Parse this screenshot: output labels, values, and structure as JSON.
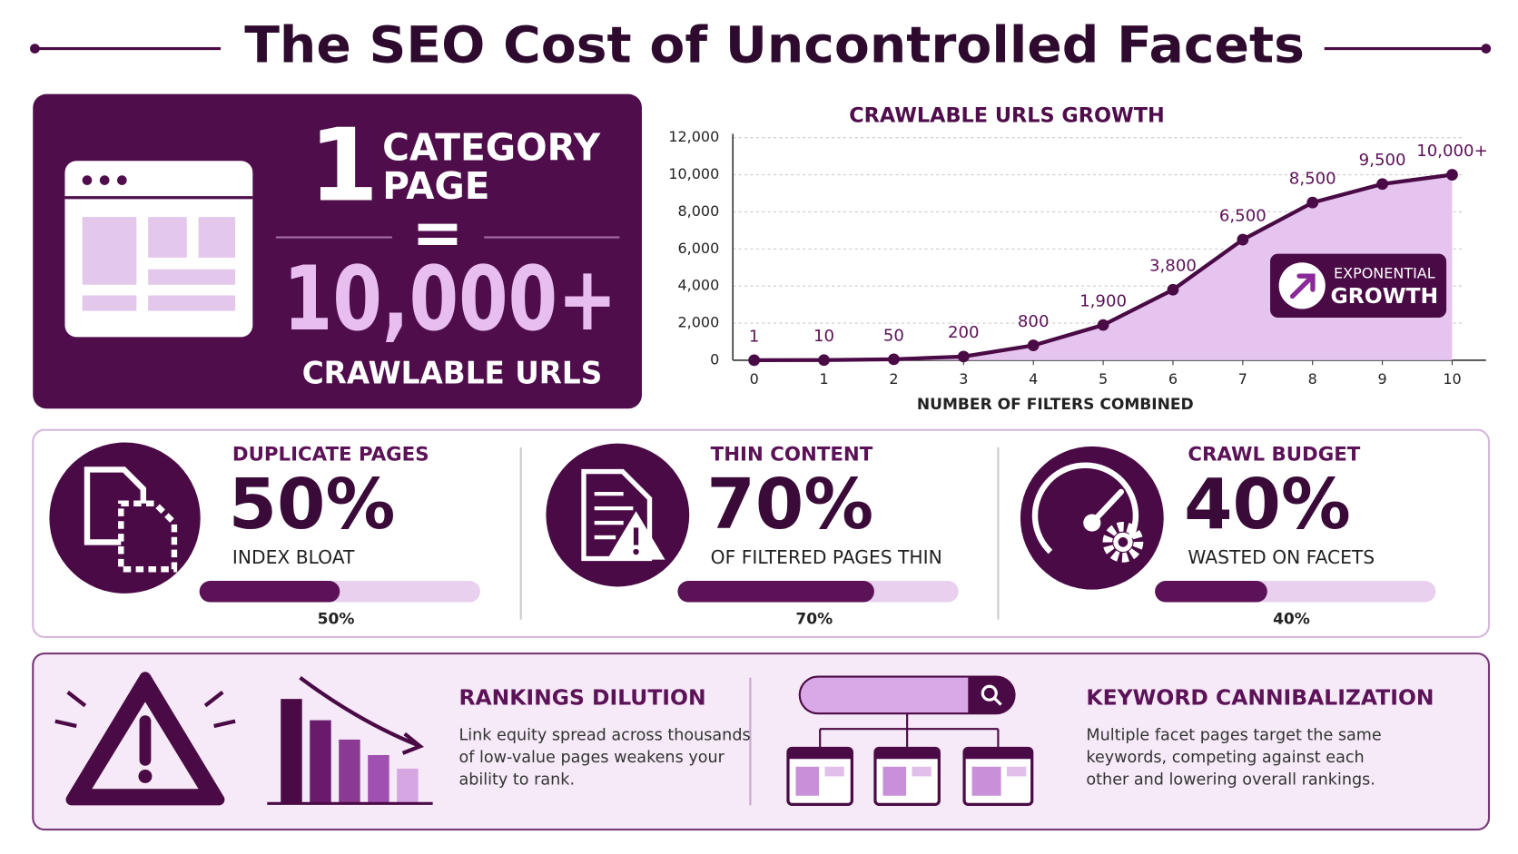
{
  "title": "The SEO Cost of Uncontrolled Facets",
  "hero": {
    "number": "1",
    "label_lines": [
      "CATEGORY",
      "PAGE"
    ],
    "equals": "=",
    "result": "10,000+",
    "result_label": "CRAWLABLE URLS"
  },
  "chart_data": {
    "type": "line",
    "title": "CRAWLABLE URLS GROWTH",
    "x_label": "NUMBER OF FILTERS COMBINED",
    "x": [
      0,
      1,
      2,
      3,
      4,
      5,
      6,
      7,
      8,
      9,
      10
    ],
    "values": [
      1,
      10,
      50,
      200,
      800,
      1900,
      3800,
      6500,
      8500,
      9500,
      10000
    ],
    "value_labels": [
      "1",
      "10",
      "50",
      "200",
      "800",
      "1,900",
      "3,800",
      "6,500",
      "8,500",
      "9,500",
      "10,000+"
    ],
    "color": "#4a0a45",
    "area_color": "#e6c4f0",
    "xlim": [
      0,
      10
    ],
    "xticks": [
      0,
      1,
      2,
      3,
      4,
      5,
      6,
      7,
      8,
      9,
      10
    ],
    "ylim": [
      0,
      12000
    ],
    "yticks": [
      0,
      {
        "value": 2000,
        "label": "2,000"
      },
      {
        "value": 4000,
        "label": "4,000"
      },
      {
        "value": 6000,
        "label": "6,000"
      },
      {
        "value": 8000,
        "label": "8,000"
      },
      {
        "value": 10000,
        "label": "10,000"
      },
      {
        "value": 12000,
        "label": "12,000"
      }
    ],
    "grid": true,
    "annotation": [
      "EXPONENTIAL",
      "GROWTH"
    ]
  },
  "stats": [
    {
      "title": "DUPLICATE PAGES",
      "value": 50,
      "value_label": "50%",
      "caption": "INDEX BLOAT"
    },
    {
      "title": "THIN CONTENT",
      "value": 70,
      "value_label": "70%",
      "caption": "OF FILTERED PAGES THIN"
    },
    {
      "title": "CRAWL BUDGET",
      "value": 40,
      "value_label": "40%",
      "caption": "WASTED ON FACETS"
    }
  ],
  "issues": [
    {
      "title": "RANKINGS DILUTION",
      "lines": [
        "Link equity spread across thousands",
        "of low-value pages weakens your",
        "ability to rank."
      ]
    },
    {
      "title": "KEYWORD CANNIBALIZATION",
      "lines": [
        "Multiple facet pages target the same",
        "keywords, competing against each",
        "other and lowering overall rankings."
      ]
    }
  ]
}
